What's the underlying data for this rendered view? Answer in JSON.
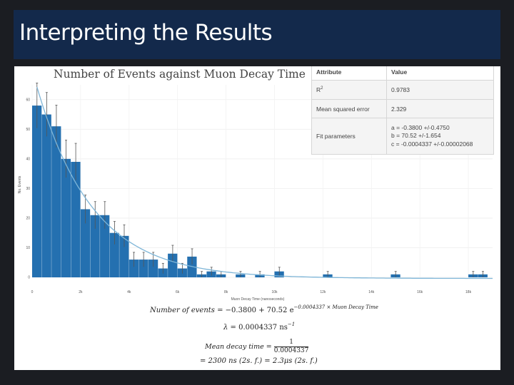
{
  "slide": {
    "title": "Interpreting the Results"
  },
  "colors": {
    "title_bar": "#13294b",
    "bar": "#2470b0",
    "fit_line": "#7fb6d8",
    "error_bar": "#555555",
    "background": "#1b1d22"
  },
  "table": {
    "headers": [
      "Attribute",
      "Value"
    ],
    "r2": {
      "label": "R",
      "sup": "2",
      "value": "0.9783"
    },
    "mse": {
      "label": "Mean squared error",
      "value": "2.329"
    },
    "fit": {
      "label": "Fit parameters",
      "a": "a = -0.3800 +/-0.4750",
      "b": "b = 70.52 +/-1.654",
      "c": "c = -0.0004337 +/-0.00002068"
    }
  },
  "equations": {
    "eq1_lhs": "Number of events",
    "eq1_rhs": " = −0.3800 + 70.52 e",
    "eq1_exp": "−0.0004337 × Muon Decay Time",
    "eq2_lhs": "λ = ",
    "eq2_val": " 0.0004337 ns",
    "eq2_exp": "−1",
    "eq3_lhs": "Mean decay time = ",
    "eq3_num": "1",
    "eq3_den": "0.0004337",
    "eq4": "= 2300 ns (2s. f.) = 2.3μs (2s. f.)"
  },
  "chart_data": {
    "type": "bar",
    "title": "Number of Events against Muon Decay Time",
    "xlabel": "Muon Decay Time (nanoseconds)",
    "ylabel": "No. Events",
    "xlim": [
      0,
      19000
    ],
    "ylim": [
      0,
      65
    ],
    "x_ticks": [
      0,
      2000,
      4000,
      6000,
      8000,
      10000,
      12000,
      14000,
      16000,
      18000
    ],
    "x_tick_labels": [
      "0",
      "2k",
      "4k",
      "6k",
      "8k",
      "10k",
      "12k",
      "14k",
      "16k",
      "18k"
    ],
    "y_ticks": [
      0,
      10,
      20,
      30,
      40,
      50,
      60
    ],
    "y_tick_labels": [
      "0",
      "10",
      "20",
      "30",
      "40",
      "50",
      "60"
    ],
    "bin_width": 400,
    "bin_starts": [
      0,
      400,
      800,
      1200,
      1600,
      2000,
      2400,
      2800,
      3200,
      3600,
      4000,
      4400,
      4800,
      5200,
      5600,
      6000,
      6400,
      6800,
      7200,
      7600,
      8000,
      8400,
      8800,
      9200,
      9600,
      10000,
      10400,
      10800,
      11200,
      11600,
      12000,
      12400,
      12800,
      13200,
      13600,
      14000,
      14400,
      14800,
      15200,
      15600,
      16000,
      16400,
      16800,
      17200,
      17600,
      18000,
      18400
    ],
    "values": [
      58,
      55,
      51,
      40,
      39,
      23,
      21,
      21,
      15,
      14,
      6,
      6,
      6,
      3,
      8,
      3,
      7,
      1,
      2,
      1,
      0,
      1,
      0,
      1,
      0,
      2,
      0,
      0,
      0,
      0,
      1,
      0,
      0,
      0,
      0,
      0,
      0,
      1,
      0,
      0,
      0,
      0,
      0,
      0,
      0,
      1,
      1
    ],
    "error_bars": true,
    "fit": {
      "type": "exponential",
      "a": -0.38,
      "b": 70.52,
      "c": -0.0004337
    }
  }
}
